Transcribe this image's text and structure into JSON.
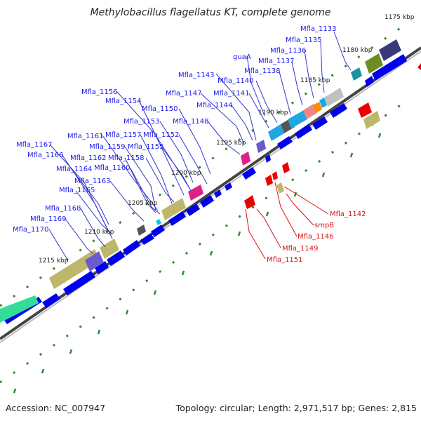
{
  "title": "Methylobacillus flagellatus KT, complete genome",
  "footer": {
    "accession": "Accession: NC_007947",
    "summary": "Topology: circular; Length: 2,971,517 bp; Genes: 2,815"
  },
  "colors": {
    "forward_gene": "#0000ee",
    "reverse_gene": "#ee0000",
    "forward_label": "#1a1aee",
    "reverse_label": "#dd1111",
    "backbone": "#777777",
    "tick": "#2e8b2e",
    "leader_line": "#3333cc"
  },
  "ruler": [
    {
      "label": "1175 kbp",
      "kbp": 1175
    },
    {
      "label": "1180 kbp",
      "kbp": 1180
    },
    {
      "label": "1185 kbp",
      "kbp": 1185
    },
    {
      "label": "1190 kbp",
      "kbp": 1190
    },
    {
      "label": "1195 kbp",
      "kbp": 1195
    },
    {
      "label": "1200 kbp",
      "kbp": 1200
    },
    {
      "label": "1205 kbp",
      "kbp": 1205
    },
    {
      "label": "1210 kbp",
      "kbp": 1210
    },
    {
      "label": "1215 kbp",
      "kbp": 1215
    }
  ],
  "forward_labels": [
    "Mfla_1133",
    "Mfla_1135",
    "Mfla_1136",
    "guaA",
    "Mfla_1137",
    "Mfla_1138",
    "Mfla_1143",
    "Mfla_1140",
    "Mfla_1147",
    "Mfla_1141",
    "Mfla_1144",
    "Mfla_1156",
    "Mfla_1154",
    "Mfla_1150",
    "Mfla_1153",
    "Mfla_1148",
    "Mfla_1161",
    "Mfla_1157",
    "Mfla_1152",
    "Mfla_1167",
    "Mfla_1159",
    "Mfla_1155",
    "Mfla_1166",
    "Mfla_1162",
    "Mfla_1158",
    "Mfla_1164",
    "Mfla_1160",
    "Mfla_1163",
    "Mfla_1165",
    "Mfla_1168",
    "Mfla_1169",
    "Mfla_1170"
  ],
  "reverse_labels": [
    "Mfla_1142",
    "smpB",
    "Mfla_1146",
    "Mfla_1149",
    "Mfla_1151"
  ]
}
